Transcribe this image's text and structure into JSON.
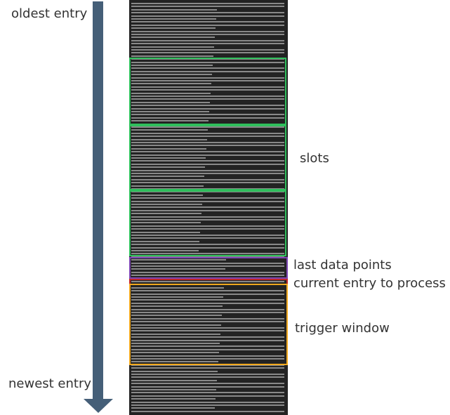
{
  "labels": {
    "oldest": "oldest entry",
    "newest": "newest entry",
    "slots": "slots",
    "last_data_points": "last data points",
    "current_entry": "current entry to process",
    "trigger_window": "trigger window"
  },
  "colors": {
    "arrow": "#455f78",
    "log_background": "#232323",
    "log_text": "#9b9b9b",
    "slot_border": "#2fbf5c",
    "last_data_border": "#7d47b4",
    "current_entry_border": "#c02528",
    "trigger_window_border": "#f0a81e"
  }
}
